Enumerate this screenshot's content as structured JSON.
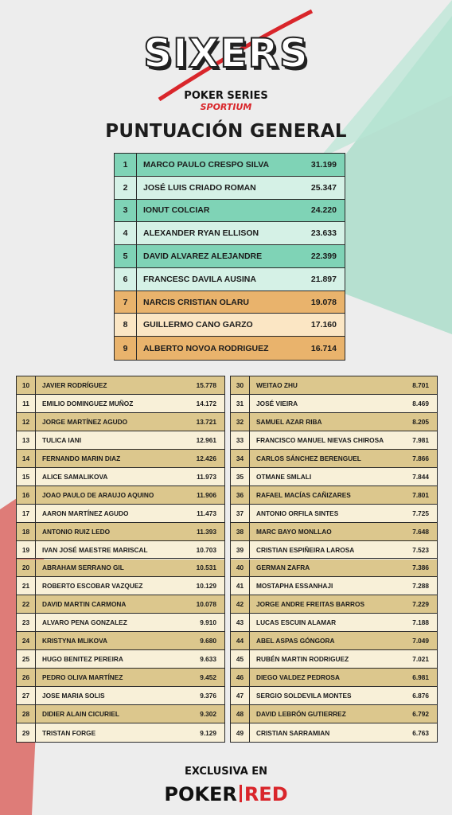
{
  "logo": {
    "title": "SIXERS",
    "subtitle": "POKER SERIES",
    "brand": "SPORTIUM"
  },
  "heading": "PUNTUACIÓN GENERAL",
  "top_table": {
    "rows": [
      [
        1,
        "MARCO PAULO CRESPO SILVA",
        "31.199"
      ],
      [
        2,
        "JOSÉ LUIS CRIADO ROMAN",
        "25.347"
      ],
      [
        3,
        "IONUT COLCIAR",
        "24.220"
      ],
      [
        4,
        "ALEXANDER RYAN ELLISON",
        "23.633"
      ],
      [
        5,
        "DAVID ALVAREZ ALEJANDRE",
        "22.399"
      ],
      [
        6,
        "FRANCESC DAVILA AUSINA",
        "21.897"
      ],
      [
        7,
        "NARCIS CRISTIAN OLARU",
        "19.078"
      ],
      [
        8,
        "GUILLERMO CANO GARZO",
        "17.160"
      ],
      [
        9,
        "ALBERTO NOVOA RODRIGUEZ",
        "16.714"
      ]
    ]
  },
  "left_table": {
    "rows": [
      [
        10,
        "JAVIER RODRÍGUEZ",
        "15.778"
      ],
      [
        11,
        "EMILIO DOMINGUEZ MUÑOZ",
        "14.172"
      ],
      [
        12,
        "JORGE MARTÍNEZ AGUDO",
        "13.721"
      ],
      [
        13,
        "TULICA IANI",
        "12.961"
      ],
      [
        14,
        "FERNANDO MARIN DIAZ",
        "12.426"
      ],
      [
        15,
        "ALICE SAMALIKOVA",
        "11.973"
      ],
      [
        16,
        "JOAO PAULO DE ARAUJO AQUINO",
        "11.906"
      ],
      [
        17,
        "AARON MARTÍNEZ AGUDO",
        "11.473"
      ],
      [
        18,
        "ANTONIO RUIZ LEDO",
        "11.393"
      ],
      [
        19,
        "IVAN JOSÉ MAESTRE MARISCAL",
        "10.703"
      ],
      [
        20,
        "ABRAHAM SERRANO GIL",
        "10.531"
      ],
      [
        21,
        "ROBERTO ESCOBAR VAZQUEZ",
        "10.129"
      ],
      [
        22,
        "DAVID MARTIN CARMONA",
        "10.078"
      ],
      [
        23,
        "ALVARO PENA GONZALEZ",
        "9.910"
      ],
      [
        24,
        "KRISTYNA MLIKOVA",
        "9.680"
      ],
      [
        25,
        "HUGO BENITEZ PEREIRA",
        "9.633"
      ],
      [
        26,
        "PEDRO OLIVA MARTÍNEZ",
        "9.452"
      ],
      [
        27,
        "JOSE MARIA SOLIS",
        "9.376"
      ],
      [
        28,
        "DIDIER ALAIN CICURIEL",
        "9.302"
      ],
      [
        29,
        "TRISTAN FORGE",
        "9.129"
      ]
    ]
  },
  "right_table": {
    "rows": [
      [
        30,
        "WEITAO ZHU",
        "8.701"
      ],
      [
        31,
        "JOSÉ VIEIRA",
        "8.469"
      ],
      [
        32,
        "SAMUEL AZAR RIBA",
        "8.205"
      ],
      [
        33,
        "FRANCISCO MANUEL NIEVAS CHIROSA",
        "7.981"
      ],
      [
        34,
        "CARLOS SÁNCHEZ BERENGUEL",
        "7.866"
      ],
      [
        35,
        "OTMANE SMLALI",
        "7.844"
      ],
      [
        36,
        "RAFAEL MACÍAS CAÑIZARES",
        "7.801"
      ],
      [
        37,
        "ANTONIO ORFILA SINTES",
        "7.725"
      ],
      [
        38,
        "MARC BAYO MONLLAO",
        "7.648"
      ],
      [
        39,
        "CRISTIAN ESPIÑEIRA LAROSA",
        "7.523"
      ],
      [
        40,
        "GERMAN ZAFRA",
        "7.386"
      ],
      [
        41,
        "MOSTAPHA ESSANHAJI",
        "7.288"
      ],
      [
        42,
        "JORGE ANDRE FREITAS BARROS",
        "7.229"
      ],
      [
        43,
        "LUCAS ESCUIN ALAMAR",
        "7.188"
      ],
      [
        44,
        "ABEL ASPAS GÓNGORA",
        "7.049"
      ],
      [
        45,
        "RUBÉN MARTIN RODRIGUEZ",
        "7.021"
      ],
      [
        46,
        "DIEGO VALDEZ PEDROSA",
        "6.981"
      ],
      [
        47,
        "SERGIO SOLDEVILA MONTES",
        "6.876"
      ],
      [
        48,
        "DAVID LEBRÓN GUTIERREZ",
        "6.792"
      ],
      [
        49,
        "CRISTIAN SARRAMIAN",
        "6.763"
      ]
    ]
  },
  "footer": {
    "label": "EXCLUSIVA EN",
    "brand_left": "POKER",
    "brand_right": "RED"
  }
}
